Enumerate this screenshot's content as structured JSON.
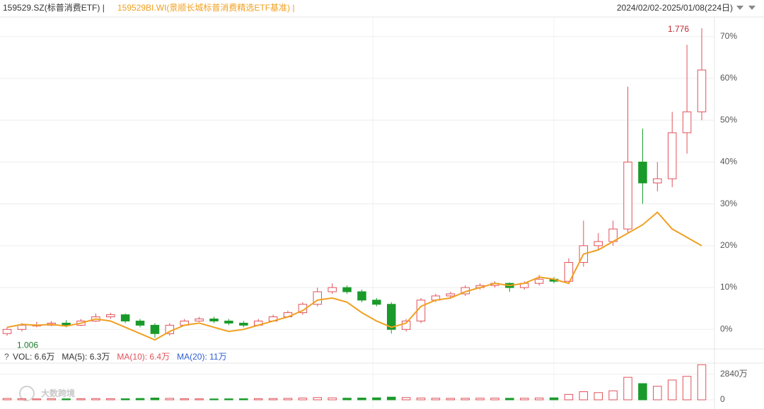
{
  "chart_data": {
    "type": "candlestick",
    "title": "159529.SZ(标普消费ETF) |",
    "subtitle": "159529BI.WI(景顺长城标普消费精选ETF基准) |",
    "date_range": "2024/02/02-2025/01/08(224日)",
    "max_label": "1.776",
    "min_label": "1.006",
    "watermark": "大数跨境",
    "up_color": "#e0525a",
    "down_color": "#1a9a2a",
    "benchmark_color": "#f0a020",
    "grid": true,
    "ylim": [
      -4,
      74
    ],
    "yticks": [
      {
        "value": 0,
        "label": "0%"
      },
      {
        "value": 10,
        "label": "10%"
      },
      {
        "value": 20,
        "label": "20%"
      },
      {
        "value": 30,
        "label": "30%"
      },
      {
        "value": 40,
        "label": "40%"
      },
      {
        "value": 50,
        "label": "50%"
      },
      {
        "value": 60,
        "label": "60%"
      },
      {
        "value": 70,
        "label": "70%"
      }
    ],
    "open": [
      -1,
      0,
      1,
      1,
      1.5,
      1,
      2,
      3,
      3.5,
      2,
      1,
      -1,
      1,
      2,
      2.5,
      2,
      1.5,
      1,
      2,
      3,
      4,
      6,
      9,
      10,
      9,
      7,
      6,
      0,
      2,
      7,
      8,
      8.5,
      10,
      10.5,
      11,
      10,
      11,
      12,
      11.5,
      16,
      20,
      21,
      24,
      40,
      35,
      36,
      47,
      52
    ],
    "high": [
      0.5,
      1.5,
      1.8,
      2,
      2.2,
      2.5,
      3.8,
      4,
      3.8,
      2.5,
      1.5,
      1.5,
      2.5,
      3,
      3,
      2.5,
      2,
      2.5,
      3.5,
      4.5,
      6.5,
      10,
      11,
      10.5,
      9.5,
      7.5,
      6.5,
      2.5,
      7.5,
      8.5,
      9,
      10.5,
      11,
      11.5,
      11.2,
      11.5,
      13,
      12.5,
      17,
      26,
      23,
      26,
      58,
      48,
      40,
      52,
      68,
      72
    ],
    "low": [
      -1.5,
      -0.5,
      0.5,
      0.8,
      0.5,
      0.8,
      1.8,
      2.5,
      1.5,
      0.5,
      -2,
      -1.5,
      0.8,
      1.8,
      1.5,
      1,
      0.5,
      0.8,
      1.8,
      2.8,
      3.5,
      5.5,
      8.5,
      8.5,
      6.5,
      5.5,
      -1,
      -0.5,
      1.5,
      6.5,
      7.5,
      8,
      9.5,
      10,
      9,
      9.5,
      10.5,
      11,
      11,
      15,
      19,
      20,
      23,
      30,
      33,
      34,
      42,
      50
    ],
    "close": [
      0,
      1,
      1,
      1.5,
      1,
      2,
      3,
      3.5,
      2,
      1,
      -1,
      1,
      2,
      2.5,
      2,
      1.5,
      1,
      2,
      3,
      4,
      6,
      9,
      10,
      9,
      7,
      6,
      0,
      2,
      7,
      8,
      8.5,
      10,
      10.5,
      11,
      10,
      11,
      12,
      11.5,
      16,
      20,
      21,
      24,
      40,
      35,
      36,
      47,
      52,
      62
    ],
    "benchmark": [
      0.5,
      1.2,
      1,
      1.2,
      0.8,
      1.5,
      2.5,
      2,
      0.5,
      -1,
      -2.5,
      -0.5,
      1,
      1.5,
      0.5,
      -0.5,
      0,
      1,
      2,
      3,
      4.5,
      7,
      7.5,
      6.5,
      4,
      2,
      0.5,
      1.5,
      5.5,
      7,
      7.5,
      9,
      10,
      11,
      10.5,
      11,
      12.5,
      12,
      11,
      18,
      19,
      21,
      23,
      25,
      28,
      24,
      22,
      20
    ],
    "volume": [
      150,
      120,
      100,
      130,
      110,
      120,
      140,
      130,
      120,
      150,
      200,
      160,
      120,
      110,
      100,
      110,
      120,
      130,
      140,
      160,
      200,
      250,
      220,
      180,
      200,
      220,
      300,
      250,
      200,
      180,
      160,
      170,
      180,
      190,
      170,
      180,
      200,
      220,
      600,
      900,
      800,
      1000,
      2500,
      1800,
      1500,
      2200,
      2600,
      3900
    ],
    "volume_ylim": [
      0,
      4000
    ],
    "volume_yticks": [
      0,
      {
        "value": 2840,
        "label": "2840万"
      }
    ],
    "volume_help": "?",
    "volume_legend": [
      {
        "text": "VOL: 6.6万",
        "color": "#333333"
      },
      {
        "text": "MA(5): 6.3万",
        "color": "#333333"
      },
      {
        "text": "MA(10): 6.4万",
        "color": "#e0525a"
      },
      {
        "text": "MA(20): 11万",
        "color": "#3060d0"
      }
    ]
  }
}
